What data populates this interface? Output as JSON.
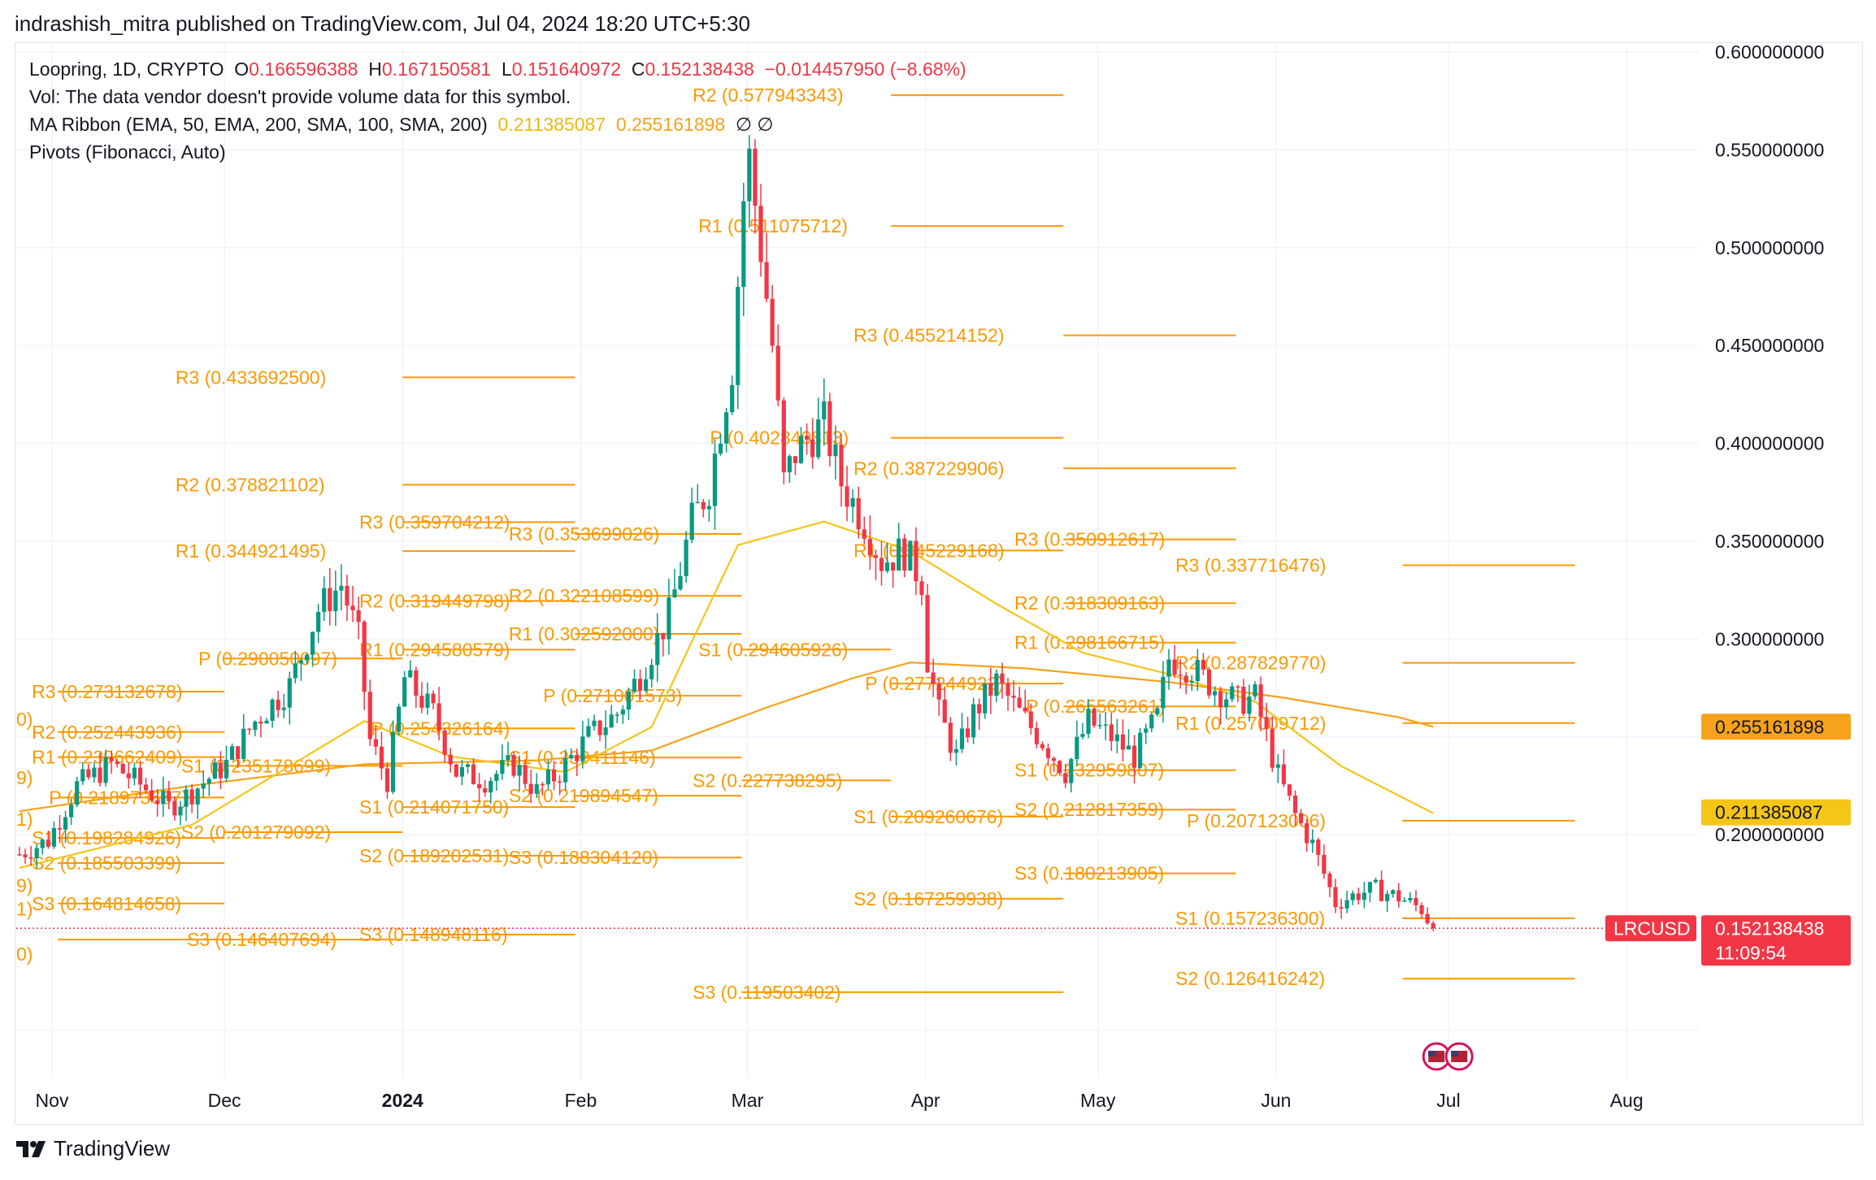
{
  "header": {
    "published": "indrashish_mitra published on TradingView.com, Jul 04, 2024 18:20 UTC+5:30"
  },
  "legend": {
    "symbol": "Loopring, 1D, CRYPTO",
    "o_label": "O",
    "o_value": "0.166596388",
    "h_label": "H",
    "h_value": "0.167150581",
    "l_label": "L",
    "l_value": "0.151640972",
    "c_label": "C",
    "c_value": "0.152138438",
    "change": "−0.014457950 (−8.68%)",
    "vol": "Vol: The data vendor doesn't provide volume data for this symbol.",
    "ma_label": "MA Ribbon (EMA, 50, EMA, 200, SMA, 100, SMA, 200)",
    "ma_v1": "0.211385087",
    "ma_v2": "0.255161898",
    "ma_na": "∅  ∅",
    "pivots": "Pivots (Fibonacci, Auto)"
  },
  "footer": {
    "brand": "TradingView"
  },
  "colors": {
    "up": "#089981",
    "down": "#f23645",
    "pivot": "#ff9800",
    "ema50": "#f5c518",
    "ema200": "#f7a21b"
  },
  "chart_data": {
    "type": "candlestick",
    "symbol": "LRCUSD",
    "timeframe": "1D",
    "x_ticks": [
      "Nov",
      "Dec",
      "2024",
      "Feb",
      "Mar",
      "Apr",
      "May",
      "Jun",
      "Jul",
      "Aug"
    ],
    "y_ticks": [
      "0.600000000",
      "0.550000000",
      "0.500000000",
      "0.450000000",
      "0.400000000",
      "0.350000000",
      "0.300000000",
      "0.200000000"
    ],
    "ylim": [
      0.075,
      0.605
    ],
    "last_price_label": "LRCUSD",
    "last_price": "0.152138438",
    "countdown": "11:09:54",
    "ma_price_tags": [
      "0.255161898",
      "0.211385087"
    ],
    "close_anchors": [
      [
        0,
        0.19
      ],
      [
        5,
        0.197
      ],
      [
        10,
        0.225
      ],
      [
        16,
        0.236
      ],
      [
        20,
        0.228
      ],
      [
        26,
        0.214
      ],
      [
        30,
        0.222
      ],
      [
        36,
        0.236
      ],
      [
        41,
        0.258
      ],
      [
        47,
        0.276
      ],
      [
        52,
        0.315
      ],
      [
        56,
        0.328
      ],
      [
        59,
        0.3
      ],
      [
        61,
        0.248
      ],
      [
        64,
        0.228
      ],
      [
        67,
        0.28
      ],
      [
        72,
        0.262
      ],
      [
        76,
        0.232
      ],
      [
        81,
        0.228
      ],
      [
        86,
        0.236
      ],
      [
        90,
        0.222
      ],
      [
        94,
        0.232
      ],
      [
        99,
        0.25
      ],
      [
        104,
        0.262
      ],
      [
        108,
        0.282
      ],
      [
        111,
        0.3
      ],
      [
        113,
        0.312
      ],
      [
        117,
        0.36
      ],
      [
        120,
        0.378
      ],
      [
        122,
        0.41
      ],
      [
        124,
        0.44
      ],
      [
        126,
        0.525
      ],
      [
        127,
        0.545
      ],
      [
        129,
        0.5
      ],
      [
        131,
        0.45
      ],
      [
        133,
        0.38
      ],
      [
        135,
        0.395
      ],
      [
        137,
        0.402
      ],
      [
        140,
        0.41
      ],
      [
        143,
        0.38
      ],
      [
        147,
        0.36
      ],
      [
        150,
        0.34
      ],
      [
        154,
        0.345
      ],
      [
        157,
        0.33
      ],
      [
        158,
        0.29
      ],
      [
        160,
        0.262
      ],
      [
        163,
        0.24
      ],
      [
        166,
        0.262
      ],
      [
        170,
        0.278
      ],
      [
        174,
        0.262
      ],
      [
        178,
        0.248
      ],
      [
        182,
        0.232
      ],
      [
        186,
        0.258
      ],
      [
        190,
        0.25
      ],
      [
        194,
        0.24
      ],
      [
        198,
        0.26
      ],
      [
        200,
        0.29
      ],
      [
        204,
        0.285
      ],
      [
        208,
        0.275
      ],
      [
        212,
        0.268
      ],
      [
        215,
        0.27
      ],
      [
        217,
        0.25
      ],
      [
        219,
        0.23
      ],
      [
        222,
        0.21
      ],
      [
        225,
        0.195
      ],
      [
        227,
        0.18
      ],
      [
        229,
        0.165
      ],
      [
        233,
        0.17
      ],
      [
        236,
        0.172
      ],
      [
        240,
        0.168
      ],
      [
        244,
        0.162
      ],
      [
        246,
        0.152
      ]
    ],
    "ema50": [
      [
        0,
        0.183
      ],
      [
        30,
        0.205
      ],
      [
        60,
        0.258
      ],
      [
        75,
        0.24
      ],
      [
        95,
        0.232
      ],
      [
        110,
        0.255
      ],
      [
        118,
        0.305
      ],
      [
        125,
        0.348
      ],
      [
        140,
        0.36
      ],
      [
        155,
        0.345
      ],
      [
        170,
        0.318
      ],
      [
        185,
        0.293
      ],
      [
        200,
        0.282
      ],
      [
        215,
        0.268
      ],
      [
        230,
        0.235
      ],
      [
        246,
        0.211
      ]
    ],
    "ema200": [
      [
        0,
        0.212
      ],
      [
        30,
        0.225
      ],
      [
        60,
        0.236
      ],
      [
        90,
        0.238
      ],
      [
        110,
        0.243
      ],
      [
        130,
        0.265
      ],
      [
        145,
        0.28
      ],
      [
        155,
        0.288
      ],
      [
        175,
        0.285
      ],
      [
        200,
        0.278
      ],
      [
        220,
        0.27
      ],
      [
        240,
        0.26
      ],
      [
        246,
        0.2552
      ]
    ],
    "pivot_levels": [
      {
        "label": "R3 (0.273132678)",
        "value": 0.273132678,
        "x0": 1,
        "x1": 30,
        "label_x": 1
      },
      {
        "label": "R2 (0.252443936)",
        "value": 0.252443936,
        "x0": 1,
        "x1": 30,
        "label_x": 1
      },
      {
        "label": "R1 (0.239662409)",
        "value": 0.239662409,
        "x0": 1,
        "x1": 30,
        "label_x": 1
      },
      {
        "label": "P (0.218973667)",
        "value": 0.218973667,
        "x0": 1,
        "x1": 30,
        "label_x": 4
      },
      {
        "label": "S1 (0.198284926)",
        "value": 0.198284926,
        "x0": 1,
        "x1": 30,
        "label_x": 1
      },
      {
        "label": "S2 (0.185503399)",
        "value": 0.185503399,
        "x0": 1,
        "x1": 30,
        "label_x": 1
      },
      {
        "label": "S3 (0.164814658)",
        "value": 0.164814658,
        "x0": 1,
        "x1": 30,
        "label_x": 1
      },
      {
        "label": "R3 (0.433692500)",
        "value": 0.4336925,
        "x0": 61,
        "x1": 91,
        "label_x": 26
      },
      {
        "label": "R2 (0.378821102)",
        "value": 0.378821102,
        "x0": 61,
        "x1": 91,
        "label_x": 26
      },
      {
        "label": "R1 (0.344921495)",
        "value": 0.344921495,
        "x0": 61,
        "x1": 91,
        "label_x": 26
      },
      {
        "label": "P (0.290050097)",
        "value": 0.290050097,
        "x0": 30,
        "x1": 61,
        "label_x": 30
      },
      {
        "label": "S1 (0.235178699)",
        "value": 0.235178699,
        "x0": 30,
        "x1": 61,
        "label_x": 27
      },
      {
        "label": "S2 (0.201279092)",
        "value": 0.201279092,
        "x0": 30,
        "x1": 61,
        "label_x": 27
      },
      {
        "label": "S3 (0.146407694)",
        "value": 0.146407694,
        "x0": 1,
        "x1": 61,
        "label_x": 28
      },
      {
        "label": "R3 (0.359704212)",
        "value": 0.359704212,
        "x0": 61,
        "x1": 91,
        "label_x": 58
      },
      {
        "label": "R2 (0.319449798)",
        "value": 0.319449798,
        "x0": 61,
        "x1": 91,
        "label_x": 58
      },
      {
        "label": "R1 (0.294580579)",
        "value": 0.294580579,
        "x0": 61,
        "x1": 91,
        "label_x": 58
      },
      {
        "label": "P (0.254326164)",
        "value": 0.254326164,
        "x0": 61,
        "x1": 91,
        "label_x": 60
      },
      {
        "label": "S1 (0.214071750)",
        "value": 0.21407175,
        "x0": 61,
        "x1": 91,
        "label_x": 58
      },
      {
        "label": "S2 (0.189202531)",
        "value": 0.189202531,
        "x0": 61,
        "x1": 91,
        "label_x": 58
      },
      {
        "label": "S3 (0.148948116)",
        "value": 0.148948116,
        "x0": 61,
        "x1": 91,
        "label_x": 58
      },
      {
        "label": "R3 (0.353699026)",
        "value": 0.353699026,
        "x0": 91,
        "x1": 120,
        "label_x": 84
      },
      {
        "label": "R2 (0.322108599)",
        "value": 0.322108599,
        "x0": 91,
        "x1": 120,
        "label_x": 84
      },
      {
        "label": "R1 (0.302592000)",
        "value": 0.302592,
        "x0": 91,
        "x1": 120,
        "label_x": 84
      },
      {
        "label": "P (0.271001573)",
        "value": 0.271001573,
        "x0": 91,
        "x1": 120,
        "label_x": 90
      },
      {
        "label": "S1 (0.239411146)",
        "value": 0.239411146,
        "x0": 91,
        "x1": 120,
        "label_x": 84
      },
      {
        "label": "S2 (0.219894547)",
        "value": 0.219894547,
        "x0": 91,
        "x1": 120,
        "label_x": 84
      },
      {
        "label": "S3 (0.188304120)",
        "value": 0.18830412,
        "x0": 91,
        "x1": 120,
        "label_x": 84
      },
      {
        "label": "R2 (0.577943343)",
        "value": 0.577943343,
        "x0": 146,
        "x1": 176,
        "label_x": 116
      },
      {
        "label": "R1 (0.511075712)",
        "value": 0.511075712,
        "x0": 146,
        "x1": 176,
        "label_x": 117
      },
      {
        "label": "P (0.402840813)",
        "value": 0.402840813,
        "x0": 146,
        "x1": 176,
        "label_x": 119
      },
      {
        "label": "S1 (0.294605926)",
        "value": 0.294605926,
        "x0": 120,
        "x1": 146,
        "label_x": 117
      },
      {
        "label": "S2 (0.227738295)",
        "value": 0.227738295,
        "x0": 120,
        "x1": 146,
        "label_x": 116
      },
      {
        "label": "S3 (0.119503402)",
        "value": 0.119503402,
        "x0": 120,
        "x1": 176,
        "label_x": 116
      },
      {
        "label": "R3 (0.455214152)",
        "value": 0.455214152,
        "x0": 176,
        "x1": 206,
        "label_x": 144
      },
      {
        "label": "R2 (0.387229906)",
        "value": 0.387229906,
        "x0": 176,
        "x1": 206,
        "label_x": 144
      },
      {
        "label": "R1 (0.345229168)",
        "value": 0.345229168,
        "x0": 146,
        "x1": 176,
        "label_x": 144
      },
      {
        "label": "P (0.277244922)",
        "value": 0.277244922,
        "x0": 146,
        "x1": 176,
        "label_x": 146
      },
      {
        "label": "S1 (0.209260676)",
        "value": 0.209260676,
        "x0": 146,
        "x1": 176,
        "label_x": 144
      },
      {
        "label": "S2 (0.167259938)",
        "value": 0.167259938,
        "x0": 146,
        "x1": 176,
        "label_x": 144
      },
      {
        "label": "R3 (0.350912617)",
        "value": 0.350912617,
        "x0": 176,
        "x1": 206,
        "label_x": 172
      },
      {
        "label": "R2 (0.318309163)",
        "value": 0.318309163,
        "x0": 176,
        "x1": 206,
        "label_x": 172
      },
      {
        "label": "R1 (0.298166715)",
        "value": 0.298166715,
        "x0": 176,
        "x1": 206,
        "label_x": 172
      },
      {
        "label": "P (0.265563261)",
        "value": 0.265563261,
        "x0": 176,
        "x1": 206,
        "label_x": 174
      },
      {
        "label": "S1 (0.232959807)",
        "value": 0.232959807,
        "x0": 176,
        "x1": 206,
        "label_x": 172
      },
      {
        "label": "S2 (0.212817359)",
        "value": 0.212817359,
        "x0": 176,
        "x1": 206,
        "label_x": 172
      },
      {
        "label": "S3 (0.180213905)",
        "value": 0.180213905,
        "x0": 176,
        "x1": 206,
        "label_x": 172
      },
      {
        "label": "R3 (0.337716476)",
        "value": 0.337716476,
        "x0": 235,
        "x1": 265,
        "label_x": 200
      },
      {
        "label": "R2 (0.287829770)",
        "value": 0.28782977,
        "x0": 235,
        "x1": 265,
        "label_x": 200
      },
      {
        "label": "R1 (0.257009712)",
        "value": 0.257009712,
        "x0": 235,
        "x1": 265,
        "label_x": 200
      },
      {
        "label": "P (0.207123006)",
        "value": 0.207123006,
        "x0": 235,
        "x1": 265,
        "label_x": 202
      },
      {
        "label": "S1 (0.157236300)",
        "value": 0.1572363,
        "x0": 235,
        "x1": 265,
        "label_x": 200
      },
      {
        "label": "S2 (0.126416242)",
        "value": 0.126416242,
        "x0": 235,
        "x1": 265,
        "label_x": 200
      }
    ],
    "edge_fragments": [
      {
        "label": "0)",
        "value": 0.259
      },
      {
        "label": "9)",
        "value": 0.229
      },
      {
        "label": "1)",
        "value": 0.208
      },
      {
        "label": "9)",
        "value": 0.174
      },
      {
        "label": "1)",
        "value": 0.162
      },
      {
        "label": "0)",
        "value": 0.139
      }
    ]
  }
}
